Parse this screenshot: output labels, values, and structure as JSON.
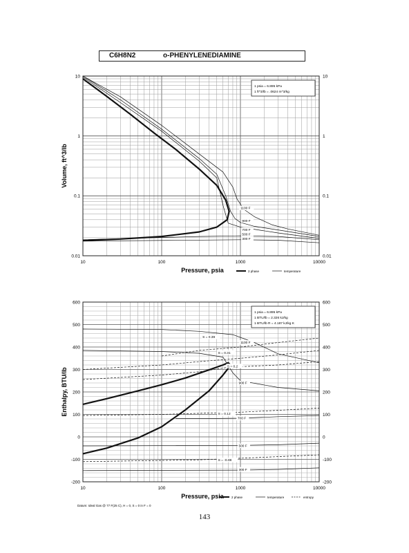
{
  "header": {
    "formula": "C6H8N2",
    "name": "o-PHENYLENEDIAMINE"
  },
  "page_number": "143",
  "chart_data": [
    {
      "type": "line",
      "xlabel": "Pressure,  psia",
      "ylabel": "Volume, ft^3/lb",
      "x_scale": "log",
      "y_scale": "log",
      "xlim": [
        10,
        10000
      ],
      "ylim": [
        0.01,
        10
      ],
      "x_ticks": [
        "10",
        "100",
        "1000",
        "10000"
      ],
      "y_ticks": [
        "0.01",
        "0.1",
        "1",
        "10"
      ],
      "grid": true,
      "info_box": [
        "1 psia  =  6.895 kPa",
        "1 ft^3/lb  =  .0624 m^3/kg"
      ],
      "legend": [
        "2 phase",
        "temperature"
      ],
      "legend_position": "bottom-right",
      "series": [
        {
          "name": "2 phase",
          "style": "thick",
          "x": [
            10,
            20,
            40,
            80,
            150,
            300,
            500,
            650,
            720,
            680,
            500,
            300,
            100,
            30,
            10
          ],
          "y": [
            9.0,
            4.6,
            2.3,
            1.12,
            0.6,
            0.28,
            0.15,
            0.085,
            0.055,
            0.04,
            0.03,
            0.025,
            0.021,
            0.019,
            0.018
          ]
        },
        {
          "label": "1100 F",
          "style": "thin",
          "x": [
            10,
            30,
            100,
            300,
            600,
            800,
            900,
            1100,
            1500,
            2500,
            4000,
            10000
          ],
          "y": [
            10,
            4.5,
            1.5,
            0.5,
            0.25,
            0.14,
            0.09,
            0.06,
            0.045,
            0.033,
            0.028,
            0.022
          ]
        },
        {
          "label": "900 F",
          "style": "thin",
          "x": [
            10,
            30,
            100,
            300,
            500,
            650,
            750,
            850,
            1000,
            1500,
            3000,
            10000
          ],
          "y": [
            10,
            4.0,
            1.3,
            0.42,
            0.23,
            0.1,
            0.055,
            0.042,
            0.036,
            0.031,
            0.027,
            0.021
          ]
        },
        {
          "label": "700 F",
          "style": "thin",
          "x": [
            10,
            30,
            100,
            300,
            500,
            600,
            700,
            1000,
            3000,
            10000
          ],
          "y": [
            9.6,
            3.6,
            1.2,
            0.38,
            0.2,
            0.07,
            0.035,
            0.03,
            0.024,
            0.0195
          ]
        },
        {
          "label": "500 F",
          "style": "thin",
          "x": [
            10,
            300,
            1000,
            3000,
            10000
          ],
          "y": [
            0.0185,
            0.021,
            0.0215,
            0.021,
            0.0185
          ]
        },
        {
          "label": "300 F",
          "style": "thin",
          "x": [
            10,
            1000,
            3000,
            10000
          ],
          "y": [
            0.0175,
            0.0185,
            0.0182,
            0.0165
          ]
        }
      ],
      "curve_labels": [
        {
          "text": "1100 F",
          "x": 1000,
          "y": 0.06
        },
        {
          "text": "900 F",
          "x": 1050,
          "y": 0.037
        },
        {
          "text": "700 F",
          "x": 1050,
          "y": 0.026
        },
        {
          "text": "500 F",
          "x": 1050,
          "y": 0.022
        },
        {
          "text": "300 F",
          "x": 1050,
          "y": 0.0185
        }
      ]
    },
    {
      "type": "line",
      "xlabel": "Pressure,  psia",
      "ylabel": "Enthalpy, BTU/lb",
      "x_scale": "log",
      "xlim": [
        10,
        10000
      ],
      "ylim": [
        -200,
        600
      ],
      "x_ticks": [
        "10",
        "100",
        "1000",
        "10000"
      ],
      "y_ticks": [
        "-200",
        "-100",
        "0",
        "100",
        "200",
        "300",
        "400",
        "500",
        "600"
      ],
      "grid": true,
      "info_box": [
        "1 psia  =  6.895 kPa",
        "1 BTU/lb  =  2.326 kJ/kg",
        "1 BTU/lb R  =  4.187 kJ/kg K"
      ],
      "legend": [
        "2 phase",
        "temperature",
        "entropy"
      ],
      "legend_position": "bottom-right",
      "footnote": "Datum: Ideal Gas @ 77 F(25 C),  H = 0,  S = 0 in F = 0",
      "series": [
        {
          "name": "2 phase vapor",
          "style": "thick",
          "x": [
            10,
            20,
            50,
            100,
            200,
            400,
            600,
            700,
            750
          ],
          "y": [
            145,
            170,
            205,
            232,
            262,
            298,
            320,
            330,
            320
          ]
        },
        {
          "name": "2 phase liquid",
          "style": "thick",
          "x": [
            10,
            20,
            50,
            100,
            200,
            400,
            600,
            700,
            750
          ],
          "y": [
            -75,
            -50,
            -5,
            45,
            120,
            205,
            275,
            305,
            320
          ]
        },
        {
          "label": "1100 F",
          "style": "thin",
          "x": [
            10,
            100,
            300,
            800,
            1500,
            3000,
            10000
          ],
          "y": [
            480,
            478,
            470,
            455,
            420,
            370,
            330
          ]
        },
        {
          "label": "900 F",
          "style": "thin",
          "x": [
            10,
            100,
            300,
            600,
            800,
            1000,
            3000,
            10000
          ],
          "y": [
            385,
            380,
            372,
            355,
            285,
            250,
            220,
            205
          ]
        },
        {
          "label": "700 F",
          "style": "thin",
          "x": [
            150,
            500,
            1000,
            3000,
            10000
          ],
          "y": [
            82,
            82,
            83,
            90,
            95
          ]
        },
        {
          "label": "500 F",
          "style": "thin",
          "x": [
            10,
            1000,
            3000,
            10000
          ],
          "y": [
            -40,
            -38,
            -35,
            -28
          ]
        },
        {
          "label": "300 F",
          "style": "thin",
          "x": [
            10,
            1000,
            3000,
            10000
          ],
          "y": [
            -150,
            -148,
            -145,
            -138
          ]
        },
        {
          "label": "S = 0.39",
          "style": "dashed",
          "x": [
            100,
            300,
            1000,
            3000,
            10000
          ],
          "y": [
            360,
            385,
            400,
            420,
            440
          ]
        },
        {
          "label": "S = 0.31",
          "style": "dashed",
          "x": [
            10,
            100,
            300,
            1000,
            3000,
            10000
          ],
          "y": [
            300,
            320,
            335,
            350,
            365,
            385
          ]
        },
        {
          "label": "S = 0.2",
          "style": "dashed",
          "x": [
            10,
            100,
            300,
            700,
            3000,
            10000
          ],
          "y": [
            255,
            275,
            290,
            310,
            320,
            335
          ]
        },
        {
          "label": "S = 0.12",
          "style": "dashed",
          "x": [
            10,
            100,
            300,
            1000,
            3000,
            10000
          ],
          "y": [
            95,
            100,
            105,
            110,
            118,
            128
          ]
        },
        {
          "label": "S = -0.08",
          "style": "dashed",
          "x": [
            10,
            100,
            300,
            1000,
            3000,
            10000
          ],
          "y": [
            -110,
            -105,
            -102,
            -95,
            -88,
            -80
          ]
        }
      ],
      "curve_labels": [
        {
          "text": "S = 0.39",
          "x": 330,
          "y": 440
        },
        {
          "text": "S = 0.31",
          "x": 520,
          "y": 370
        },
        {
          "text": "S = 0.2",
          "x": 680,
          "y": 310
        },
        {
          "text": "S = 0.12",
          "x": 520,
          "y": 98
        },
        {
          "text": "S = -0.08",
          "x": 520,
          "y": -108
        },
        {
          "text": "1100 F",
          "x": 1000,
          "y": 415
        },
        {
          "text": "900 F",
          "x": 950,
          "y": 235
        },
        {
          "text": "700 F",
          "x": 920,
          "y": 78
        },
        {
          "text": "500 F",
          "x": 950,
          "y": -45
        },
        {
          "text": "300 F",
          "x": 950,
          "y": -150
        }
      ]
    }
  ]
}
